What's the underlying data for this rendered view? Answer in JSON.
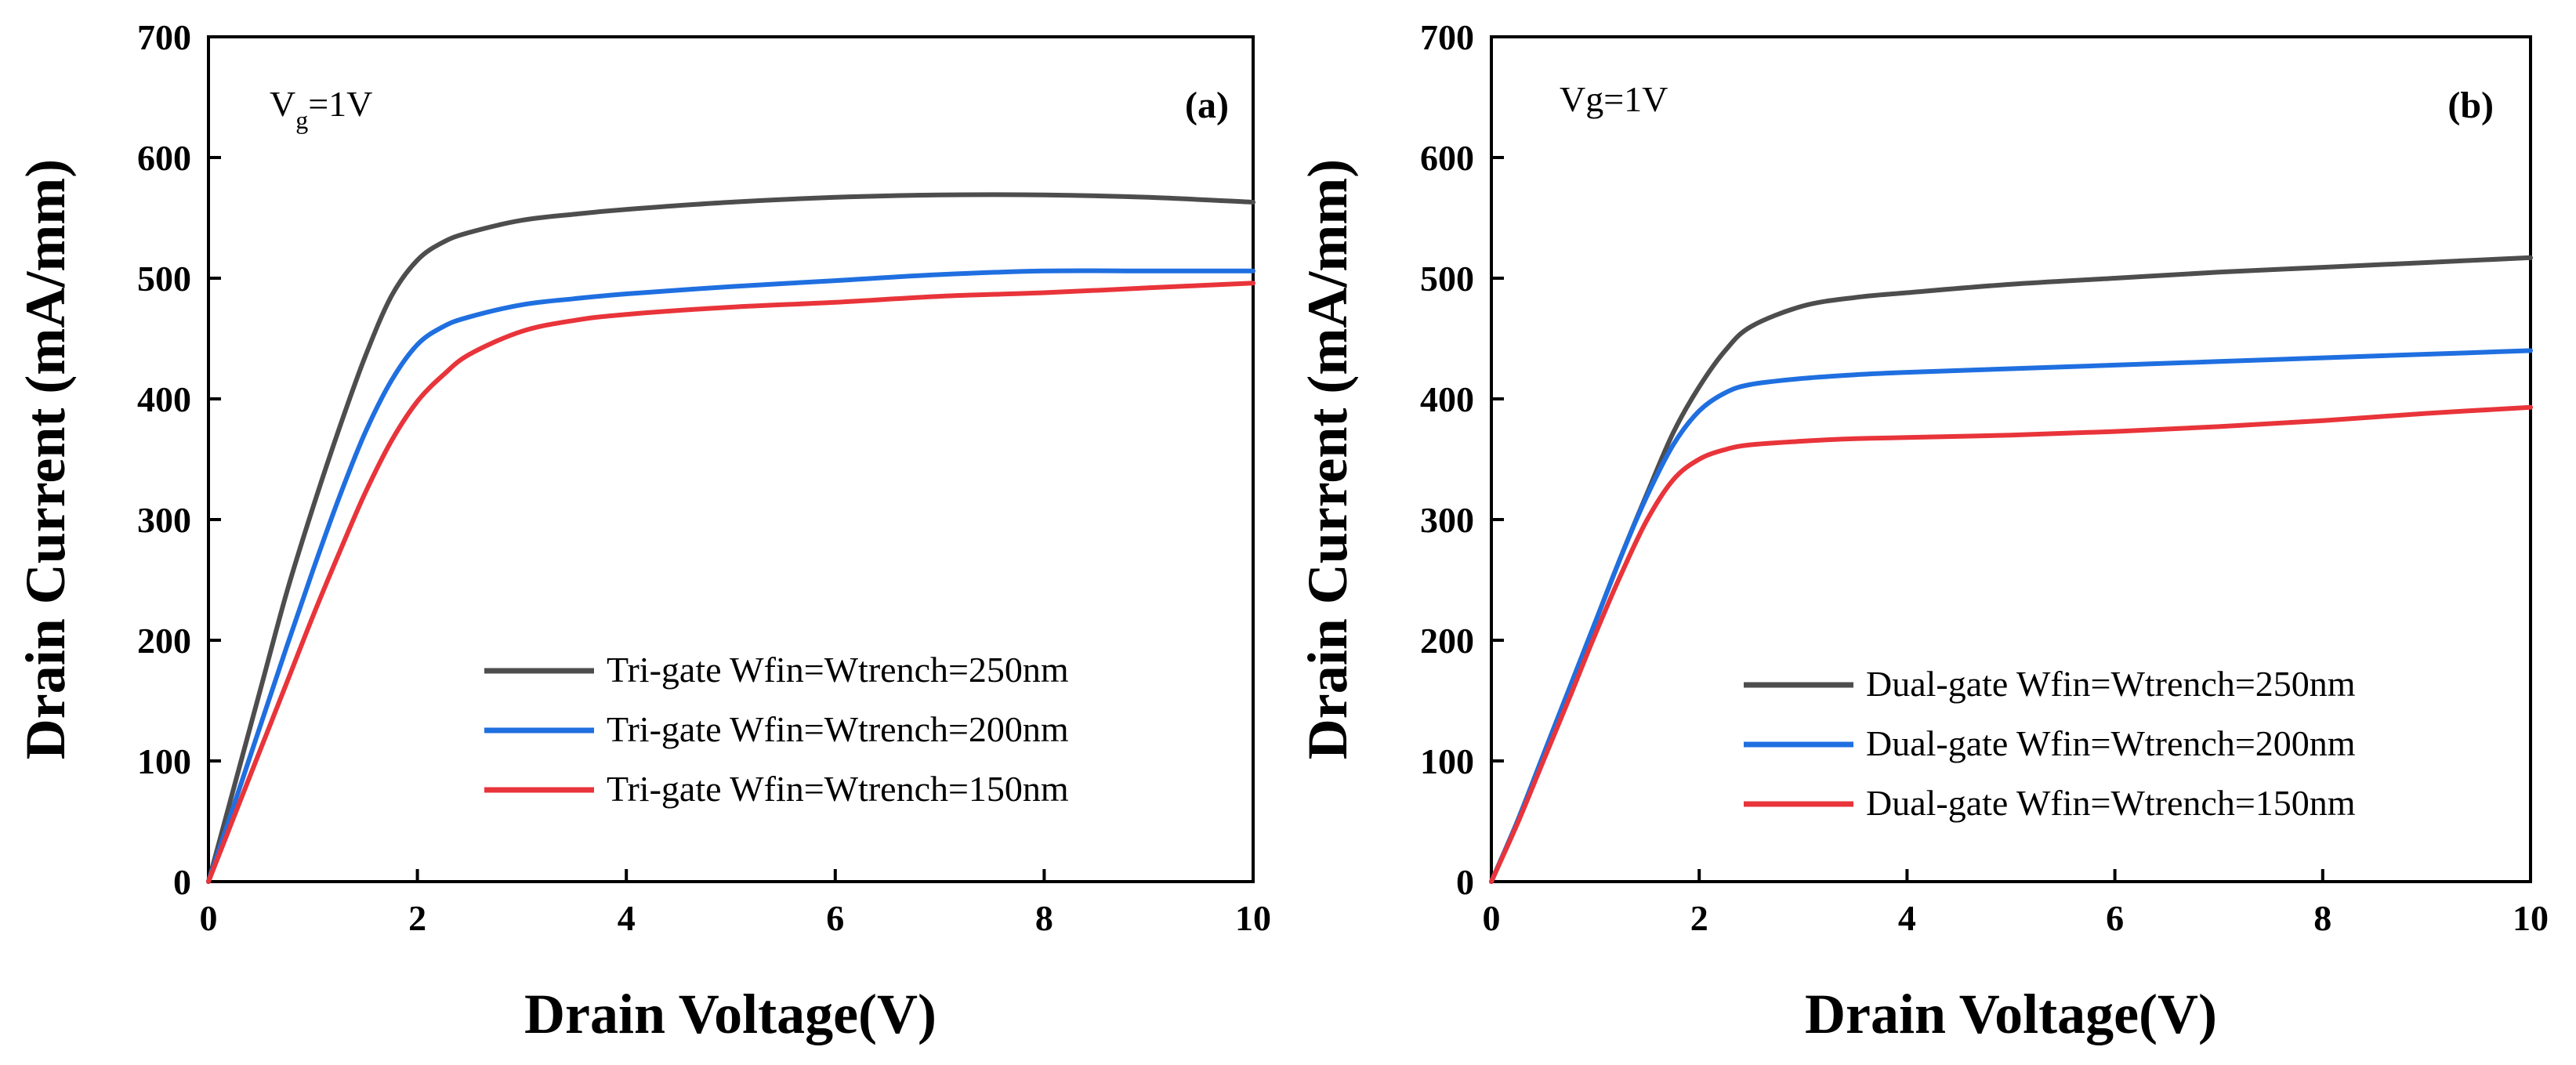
{
  "chart_data": [
    {
      "type": "line",
      "panel_label": "(a)",
      "annotation": {
        "main": "V",
        "sub": "g",
        "rest": "=1V"
      },
      "xlabel": "Drain Voltage(V)",
      "ylabel": "Drain Current (mA/mm)",
      "xlim": [
        0,
        10
      ],
      "ylim": [
        0,
        700
      ],
      "xticks": [
        0,
        2,
        4,
        6,
        8,
        10
      ],
      "yticks": [
        0,
        100,
        200,
        300,
        400,
        500,
        600,
        700
      ],
      "grid": false,
      "legend_position": "bottom-right",
      "series": [
        {
          "name": "Tri-gate Wfin=Wtrench=250nm",
          "color": "#4d4d4d",
          "x": [
            0,
            0.25,
            0.5,
            0.75,
            1.0,
            1.25,
            1.5,
            1.75,
            2.0,
            2.25,
            2.5,
            3,
            3.5,
            4,
            5,
            6,
            7,
            8,
            9,
            10
          ],
          "y": [
            0,
            80,
            160,
            240,
            310,
            375,
            435,
            485,
            515,
            530,
            538,
            548,
            553,
            557,
            563,
            567,
            569,
            569,
            567,
            563
          ]
        },
        {
          "name": "Tri-gate Wfin=Wtrench=200nm",
          "color": "#1f6fe0",
          "x": [
            0,
            0.25,
            0.5,
            0.75,
            1.0,
            1.25,
            1.5,
            1.75,
            2.0,
            2.25,
            2.5,
            3,
            3.5,
            4,
            5,
            6,
            7,
            8,
            9,
            10
          ],
          "y": [
            0,
            65,
            130,
            195,
            258,
            318,
            372,
            415,
            445,
            460,
            468,
            478,
            483,
            487,
            493,
            498,
            503,
            506,
            506,
            506
          ]
        },
        {
          "name": "Tri-gate Wfin=Wtrench=150nm",
          "color": "#e8343a",
          "x": [
            0,
            0.25,
            0.5,
            0.75,
            1.0,
            1.25,
            1.5,
            1.75,
            2.0,
            2.25,
            2.5,
            3,
            3.5,
            4,
            5,
            6,
            7,
            8,
            9,
            10
          ],
          "y": [
            0,
            55,
            110,
            165,
            220,
            272,
            322,
            365,
            398,
            420,
            437,
            456,
            465,
            470,
            476,
            480,
            485,
            488,
            492,
            496
          ]
        }
      ]
    },
    {
      "type": "line",
      "panel_label": "(b)",
      "annotation": {
        "main": "Vg",
        "sub": "",
        "rest": "=1V"
      },
      "xlabel": "Drain Voltage(V)",
      "ylabel": "Drain Current (mA/mm)",
      "xlim": [
        0,
        10
      ],
      "ylim": [
        0,
        700
      ],
      "xticks": [
        0,
        2,
        4,
        6,
        8,
        10
      ],
      "yticks": [
        0,
        100,
        200,
        300,
        400,
        500,
        600,
        700
      ],
      "grid": false,
      "legend_position": "bottom-right",
      "series": [
        {
          "name": "Dual-gate Wfin=Wtrench=250nm",
          "color": "#4d4d4d",
          "x": [
            0,
            0.25,
            0.5,
            0.75,
            1.0,
            1.25,
            1.5,
            1.75,
            2.0,
            2.25,
            2.5,
            3,
            3.5,
            4,
            5,
            6,
            7,
            8,
            9,
            10
          ],
          "y": [
            0,
            50,
            105,
            160,
            215,
            270,
            322,
            372,
            410,
            440,
            460,
            477,
            484,
            488,
            495,
            500,
            505,
            509,
            513,
            517
          ]
        },
        {
          "name": "Dual-gate Wfin=Wtrench=200nm",
          "color": "#1f6fe0",
          "x": [
            0,
            0.25,
            0.5,
            0.75,
            1.0,
            1.25,
            1.5,
            1.75,
            2.0,
            2.25,
            2.5,
            3,
            3.5,
            4,
            5,
            6,
            7,
            8,
            9,
            10
          ],
          "y": [
            0,
            50,
            105,
            160,
            215,
            270,
            320,
            362,
            390,
            405,
            412,
            417,
            420,
            422,
            425,
            428,
            431,
            434,
            437,
            440
          ]
        },
        {
          "name": "Dual-gate Wfin=Wtrench=150nm",
          "color": "#e8343a",
          "x": [
            0,
            0.25,
            0.5,
            0.75,
            1.0,
            1.25,
            1.5,
            1.75,
            2.0,
            2.25,
            2.5,
            3,
            3.5,
            4,
            5,
            6,
            7,
            8,
            9,
            10
          ],
          "y": [
            0,
            48,
            100,
            152,
            205,
            255,
            300,
            333,
            350,
            358,
            362,
            365,
            367,
            368,
            370,
            373,
            377,
            382,
            388,
            393
          ]
        }
      ]
    }
  ]
}
